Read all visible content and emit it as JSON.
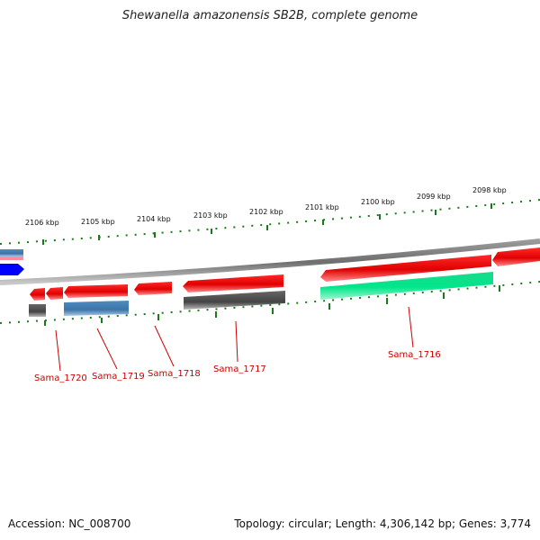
{
  "title": "Shewanella amazonensis SB2B, complete genome",
  "footer": {
    "accession": "Accession: NC_008700",
    "topology": "Topology: circular; Length: 4,306,142 bp; Genes: 3,774"
  },
  "scale_labels": [
    "2106 kbp",
    "2105 kbp",
    "2104 kbp",
    "2103 kbp",
    "2102 kbp",
    "2101 kbp",
    "2100 kbp",
    "2099 kbp",
    "2098 kbp"
  ],
  "gene_labels": [
    "Sama_1720",
    "Sama_1719",
    "Sama_1718",
    "Sama_1717",
    "Sama_1716"
  ],
  "colors": {
    "cds": "#ff0000",
    "blue_feature": "#0000ff",
    "steel_feature": "#4682b4",
    "grey_feature": "#555555",
    "green_feature": "#00e68a",
    "backbone": "#808080",
    "tick": "#1a7a1a",
    "label_line": "#cc0000"
  }
}
